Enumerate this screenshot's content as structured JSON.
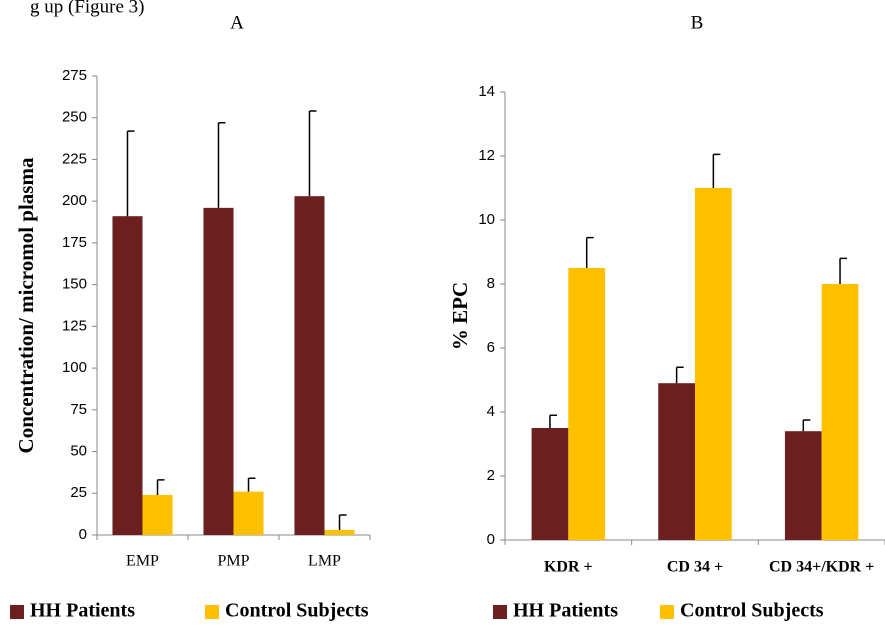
{
  "text_fragment": "g up (Figure 3)",
  "chart_data": [
    {
      "type": "bar",
      "title": "A",
      "y_label": "Concentration/ micromol plasma",
      "categories": [
        "EMP",
        "PMP",
        "LMP"
      ],
      "series": [
        {
          "name": "HH Patients",
          "color": "#6b1f1f",
          "values": [
            191,
            196,
            203
          ],
          "errors": [
            51,
            51,
            51
          ]
        },
        {
          "name": "Control Subjects",
          "color": "#ffc000",
          "values": [
            24,
            26,
            3
          ],
          "errors": [
            9,
            8,
            9
          ]
        }
      ],
      "ylim": [
        0,
        275
      ],
      "yticks": [
        0,
        25,
        50,
        75,
        100,
        125,
        150,
        175,
        200,
        225,
        250,
        275
      ],
      "grid": false,
      "legend": "bottom"
    },
    {
      "type": "bar",
      "title": "B",
      "y_label": "% EPC",
      "categories": [
        "KDR +",
        "CD 34 +",
        "CD 34+/KDR +"
      ],
      "series": [
        {
          "name": "HH Patients",
          "color": "#6b1f1f",
          "values": [
            3.5,
            4.9,
            3.4
          ],
          "errors": [
            0.4,
            0.5,
            0.35
          ]
        },
        {
          "name": "Control Subjects",
          "color": "#ffc000",
          "values": [
            8.5,
            11,
            8
          ],
          "errors": [
            0.95,
            1.05,
            0.8
          ]
        }
      ],
      "ylim": [
        0,
        14
      ],
      "yticks": [
        0,
        2,
        4,
        6,
        8,
        10,
        12,
        14
      ],
      "grid": false,
      "legend": "bottom"
    }
  ]
}
